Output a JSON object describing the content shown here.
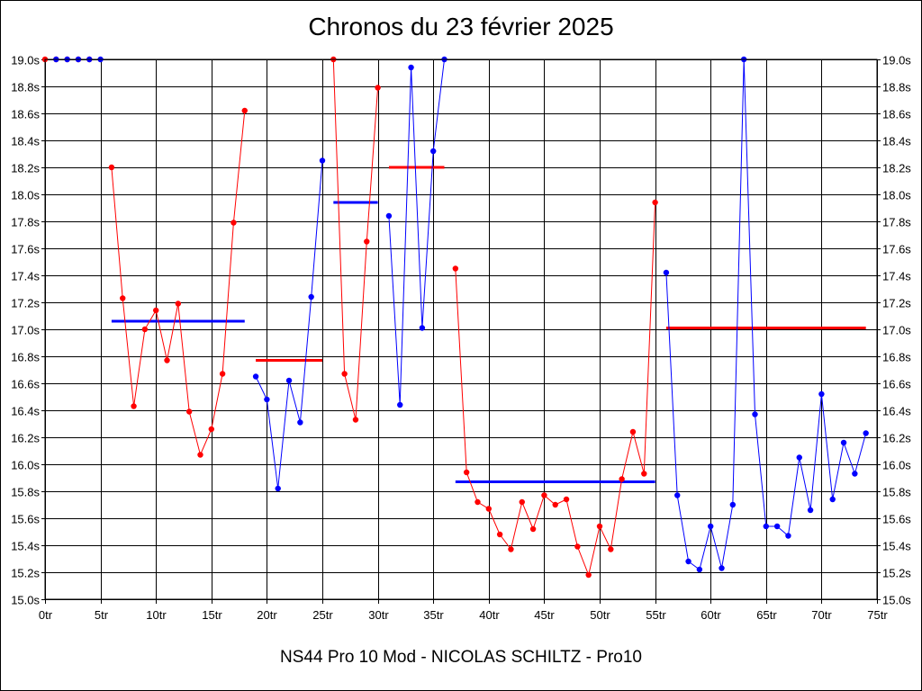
{
  "chart_data": {
    "type": "line",
    "title": "Chronos du 23 février 2025",
    "subtitle": "NS44 Pro 10 Mod - NICOLAS SCHILTZ - Pro10",
    "xlabel": "",
    "ylabel": "",
    "xlim": [
      0,
      75
    ],
    "ylim": [
      15.0,
      19.0
    ],
    "grid": true,
    "x_ticks": [
      "0tr",
      "5tr",
      "10tr",
      "15tr",
      "20tr",
      "25tr",
      "30tr",
      "35tr",
      "40tr",
      "45tr",
      "50tr",
      "55tr",
      "60tr",
      "65tr",
      "70tr",
      "75tr"
    ],
    "y_ticks": [
      "15.0s",
      "15.2s",
      "15.4s",
      "15.6s",
      "15.8s",
      "16.0s",
      "16.2s",
      "16.4s",
      "16.6s",
      "16.8s",
      "17.0s",
      "17.2s",
      "17.4s",
      "17.6s",
      "17.8s",
      "18.0s",
      "18.2s",
      "18.4s",
      "18.6s",
      "18.8s",
      "19.0s"
    ],
    "series": [
      {
        "color": "#ff0000",
        "x": [
          0,
          1,
          2,
          3,
          4
        ],
        "y": [
          19.0,
          19.0,
          19.0,
          19.0,
          19.0
        ]
      },
      {
        "color": "#0000ff",
        "x": [
          1,
          2,
          3,
          4,
          5
        ],
        "y": [
          19.0,
          19.0,
          19.0,
          19.0,
          19.0
        ]
      },
      {
        "color": "#ff0000",
        "x": [
          6,
          7,
          8,
          9,
          10,
          11,
          12,
          13,
          14,
          15,
          16,
          17,
          18
        ],
        "y": [
          18.2,
          17.23,
          16.43,
          17.0,
          17.14,
          16.77,
          17.19,
          16.39,
          16.07,
          16.26,
          16.67,
          17.79,
          18.62
        ]
      },
      {
        "color": "#0000ff",
        "x": [
          19,
          20,
          21,
          22,
          23,
          24,
          25
        ],
        "y": [
          16.65,
          16.48,
          15.82,
          16.62,
          16.31,
          17.24,
          18.25
        ]
      },
      {
        "color": "#ff0000",
        "x": [
          26,
          27,
          28,
          29,
          30
        ],
        "y": [
          19.0,
          16.67,
          16.33,
          17.65,
          18.79
        ]
      },
      {
        "color": "#0000ff",
        "x": [
          31,
          32,
          33,
          34,
          35,
          36
        ],
        "y": [
          17.84,
          16.44,
          18.94,
          17.01,
          18.32,
          19.0
        ]
      },
      {
        "color": "#ff0000",
        "x": [
          37,
          38,
          39,
          40,
          41,
          42,
          43,
          44,
          45,
          46,
          47,
          48,
          49,
          50,
          51,
          52,
          53,
          54,
          55
        ],
        "y": [
          17.45,
          15.94,
          15.72,
          15.67,
          15.48,
          15.37,
          15.72,
          15.52,
          15.77,
          15.7,
          15.74,
          15.39,
          15.18,
          15.54,
          15.37,
          15.89,
          16.24,
          15.93,
          17.94
        ]
      },
      {
        "color": "#0000ff",
        "x": [
          56,
          57,
          58,
          59,
          60,
          61,
          62,
          63,
          64,
          65,
          66,
          67,
          68,
          69,
          70,
          71,
          72,
          73,
          74
        ],
        "y": [
          17.42,
          15.77,
          15.28,
          15.22,
          15.54,
          15.23,
          15.7,
          19.0,
          16.37,
          15.54,
          15.54,
          15.47,
          16.05,
          15.66,
          16.52,
          15.74,
          16.16,
          15.93,
          16.23
        ]
      }
    ],
    "averages": [
      {
        "color": "#0000ff",
        "x_start": 6,
        "x_end": 18,
        "y": 17.06
      },
      {
        "color": "#ff0000",
        "x_start": 19,
        "x_end": 25,
        "y": 16.77
      },
      {
        "color": "#0000ff",
        "x_start": 26,
        "x_end": 30,
        "y": 17.94
      },
      {
        "color": "#ff0000",
        "x_start": 31,
        "x_end": 36,
        "y": 18.2
      },
      {
        "color": "#0000ff",
        "x_start": 37,
        "x_end": 55,
        "y": 15.87
      },
      {
        "color": "#ff0000",
        "x_start": 56,
        "x_end": 74,
        "y": 17.01
      }
    ]
  }
}
